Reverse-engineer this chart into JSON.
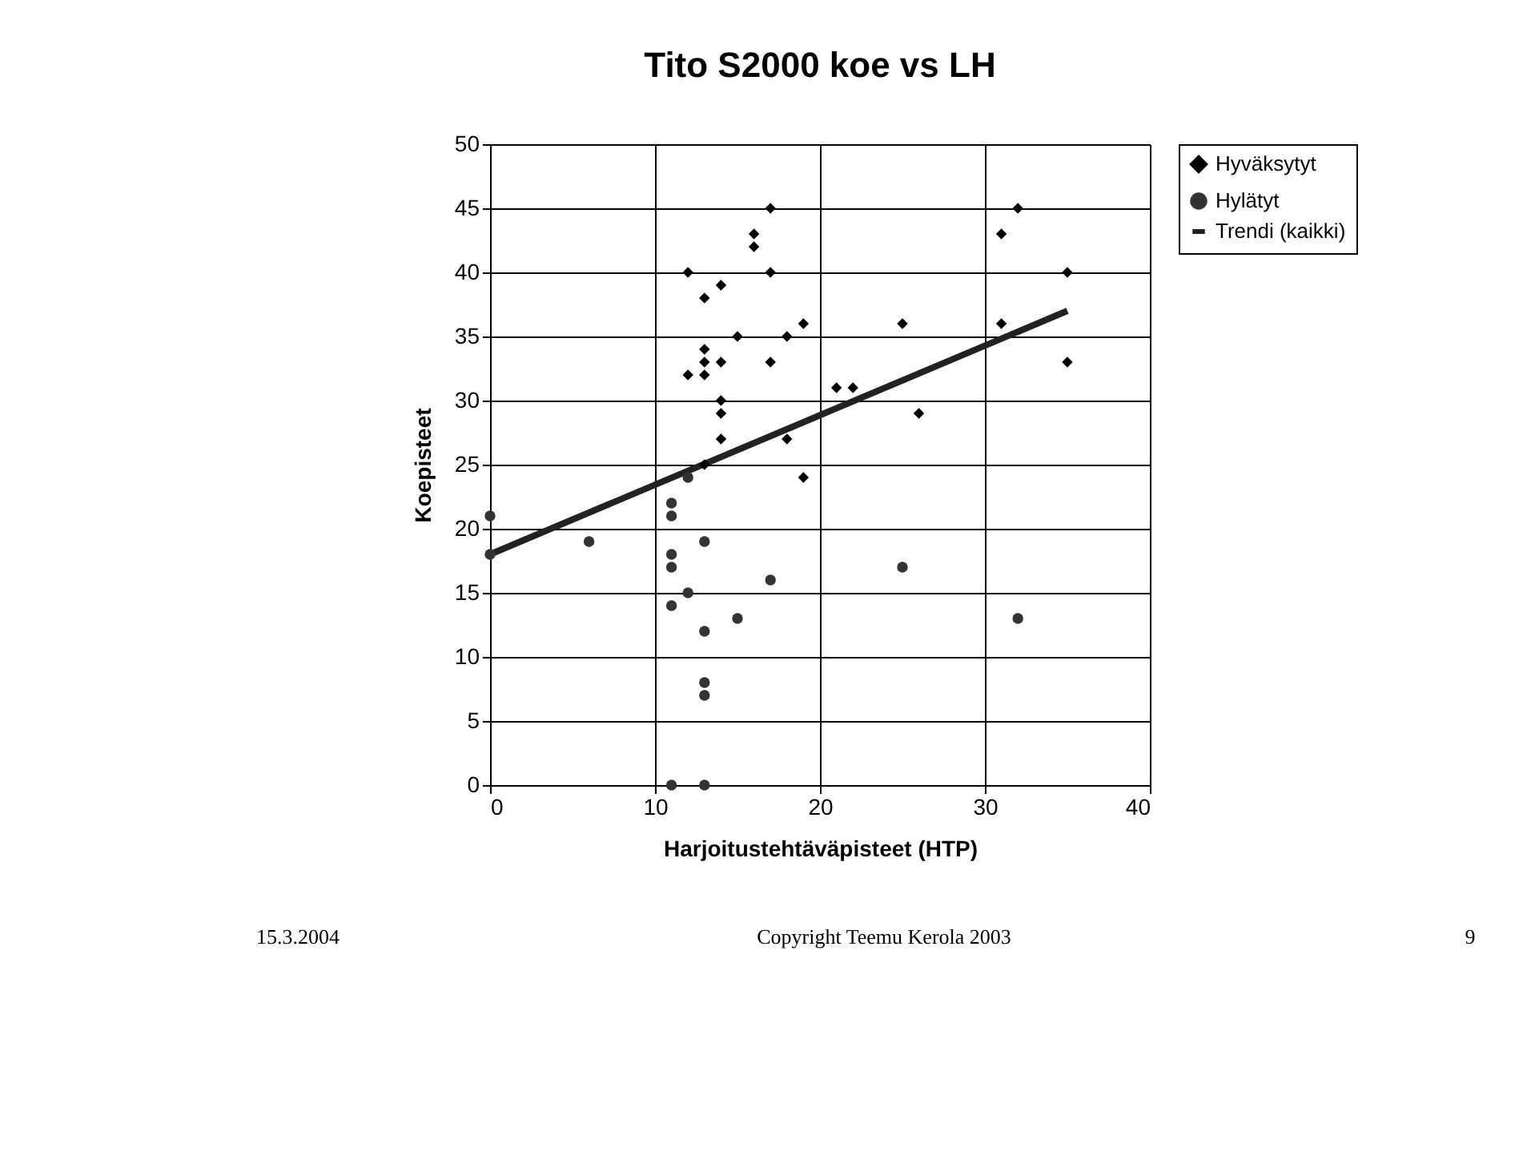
{
  "chart_data": {
    "type": "scatter",
    "title": "Tito S2000 koe vs LH",
    "xlabel": "Harjoitustehtäväpisteet (HTP)",
    "ylabel": "Koepisteet",
    "xlim": [
      0,
      40
    ],
    "xticks": [
      0,
      10,
      20,
      30,
      40
    ],
    "ylim": [
      0,
      50
    ],
    "yticks": [
      0,
      5,
      10,
      15,
      20,
      25,
      30,
      35,
      40,
      45,
      50
    ],
    "grid": true,
    "legend": "right",
    "series": [
      {
        "name": "Hyväksytyt",
        "color": "#000000",
        "marker": "diamond",
        "x": [
          17,
          16,
          16,
          12,
          17,
          14,
          13,
          19,
          18,
          15,
          13,
          13,
          14,
          17,
          12,
          13,
          14,
          14,
          14,
          18,
          13,
          19,
          21,
          22,
          25,
          26,
          31,
          32,
          31,
          35,
          35
        ],
        "values": [
          45,
          43,
          42,
          40,
          40,
          39,
          38,
          36,
          35,
          35,
          34,
          33,
          33,
          33,
          32,
          32,
          30,
          29,
          27,
          27,
          25,
          24,
          31,
          31,
          36,
          29,
          43,
          45,
          36,
          40,
          33
        ]
      },
      {
        "name": "Hylätyt",
        "color": "#333333",
        "marker": "circle",
        "x": [
          0,
          0,
          6,
          11,
          11,
          12,
          11,
          11,
          13,
          12,
          11,
          15,
          17,
          13,
          13,
          13,
          11,
          13,
          25,
          32
        ],
        "values": [
          21,
          18,
          19,
          22,
          21,
          24,
          18,
          17,
          19,
          15,
          14,
          13,
          16,
          12,
          8,
          7,
          0,
          0,
          17,
          13
        ]
      },
      {
        "name": "Trendi (kaikki)",
        "type": "line",
        "color": "#222222",
        "marker": "none",
        "line_style": "solid",
        "x": [
          0,
          35
        ],
        "values": [
          18,
          37
        ]
      }
    ],
    "annotations": [
      "15.3.2004",
      "Copyright Teemu Kerola 2003",
      "9"
    ]
  }
}
